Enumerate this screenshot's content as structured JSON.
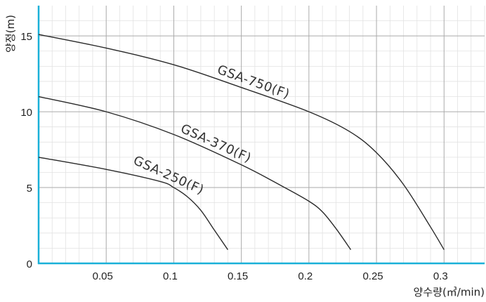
{
  "chart_data": {
    "type": "line",
    "xlabel": "양수량(㎥/min)",
    "ylabel": "양정(m)",
    "xlim": [
      0,
      0.33
    ],
    "ylim": [
      0,
      17
    ],
    "x_ticks": [
      0.05,
      0.1,
      0.15,
      0.2,
      0.25,
      0.3
    ],
    "x_tick_labels": [
      "0.05",
      "0.1",
      "0.15",
      "0.2",
      "0.25",
      "0.3"
    ],
    "y_ticks": [
      0,
      5,
      10,
      15
    ],
    "y_tick_labels": [
      "0",
      "5",
      "10",
      "15"
    ],
    "grid": true,
    "legend": "none",
    "colors": {
      "axis": "#1ab0d8",
      "curve": "#2a2a2a",
      "major_grid": "#aaaaaa",
      "minor_grid": "#e2e2e2"
    },
    "series": [
      {
        "name": "GSA-750(F)",
        "x": [
          0,
          0.05,
          0.1,
          0.15,
          0.2,
          0.23,
          0.25,
          0.27,
          0.29,
          0.3
        ],
        "y": [
          15.1,
          14.2,
          13.1,
          11.6,
          10.0,
          8.7,
          7.3,
          5.2,
          2.4,
          0.9
        ]
      },
      {
        "name": "GSA-370(F)",
        "x": [
          0,
          0.05,
          0.1,
          0.15,
          0.18,
          0.2,
          0.21,
          0.22,
          0.231
        ],
        "y": [
          11.0,
          10.0,
          8.5,
          6.5,
          5.1,
          4.1,
          3.4,
          2.3,
          0.9
        ]
      },
      {
        "name": "GSA-250(F)",
        "x": [
          0,
          0.05,
          0.09,
          0.1,
          0.11,
          0.12,
          0.13,
          0.14
        ],
        "y": [
          7.0,
          6.2,
          5.4,
          5.0,
          4.4,
          3.5,
          2.2,
          0.9
        ]
      }
    ]
  }
}
